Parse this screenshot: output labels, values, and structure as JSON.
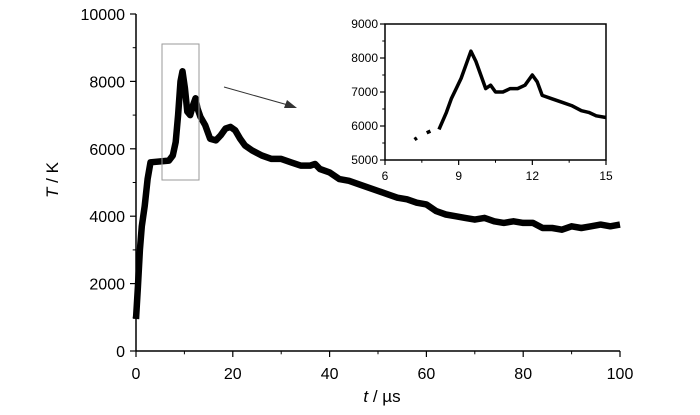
{
  "chart_data": [
    {
      "id": "main",
      "type": "line",
      "xlabel_var": "t",
      "xlabel_unit": " / µs",
      "ylabel_var": "T",
      "ylabel_unit": " / K",
      "xlim": [
        0,
        100
      ],
      "ylim": [
        0,
        10000
      ],
      "xticks": [
        "0",
        "20",
        "40",
        "60",
        "80",
        "100"
      ],
      "yticks": [
        "0",
        "2000",
        "4000",
        "6000",
        "8000",
        "10000"
      ],
      "grid": false,
      "series": [
        {
          "color": "#000000",
          "points": [
            [
              0.0,
              950
            ],
            [
              0.4,
              1900
            ],
            [
              0.8,
              3000
            ],
            [
              1.2,
              3700
            ],
            [
              1.8,
              4300
            ],
            [
              2.4,
              5100
            ],
            [
              3.0,
              5600
            ],
            [
              6.8,
              5650
            ],
            [
              7.6,
              5800
            ],
            [
              8.2,
              6200
            ],
            [
              8.7,
              7000
            ],
            [
              9.2,
              8000
            ],
            [
              9.6,
              8300
            ],
            [
              10.1,
              7800
            ],
            [
              10.6,
              7100
            ],
            [
              11.2,
              7000
            ],
            [
              11.8,
              7300
            ],
            [
              12.3,
              7500
            ],
            [
              12.7,
              7200
            ],
            [
              13.3,
              6950
            ],
            [
              14.3,
              6700
            ],
            [
              15.3,
              6300
            ],
            [
              16.5,
              6250
            ],
            [
              17.5,
              6400
            ],
            [
              18.5,
              6600
            ],
            [
              19.5,
              6650
            ],
            [
              20.5,
              6550
            ],
            [
              21.5,
              6300
            ],
            [
              22.5,
              6100
            ],
            [
              24,
              5950
            ],
            [
              26,
              5800
            ],
            [
              28,
              5700
            ],
            [
              30,
              5700
            ],
            [
              32,
              5600
            ],
            [
              34,
              5500
            ],
            [
              36,
              5500
            ],
            [
              37,
              5550
            ],
            [
              38,
              5400
            ],
            [
              40,
              5300
            ],
            [
              42,
              5100
            ],
            [
              44,
              5050
            ],
            [
              46,
              4950
            ],
            [
              48,
              4850
            ],
            [
              50,
              4750
            ],
            [
              52,
              4650
            ],
            [
              54,
              4550
            ],
            [
              56,
              4500
            ],
            [
              58,
              4400
            ],
            [
              60,
              4350
            ],
            [
              62,
              4150
            ],
            [
              64,
              4050
            ],
            [
              66,
              4000
            ],
            [
              68,
              3950
            ],
            [
              70,
              3900
            ],
            [
              72,
              3950
            ],
            [
              74,
              3850
            ],
            [
              76,
              3800
            ],
            [
              78,
              3850
            ],
            [
              80,
              3800
            ],
            [
              82,
              3800
            ],
            [
              84,
              3650
            ],
            [
              86,
              3650
            ],
            [
              88,
              3600
            ],
            [
              90,
              3700
            ],
            [
              92,
              3650
            ],
            [
              94,
              3700
            ],
            [
              96,
              3750
            ],
            [
              98,
              3700
            ],
            [
              100,
              3750
            ]
          ]
        }
      ]
    },
    {
      "id": "inset",
      "type": "line",
      "xlim": [
        6,
        15
      ],
      "ylim": [
        5000,
        9000
      ],
      "xticks": [
        "6",
        "9",
        "12",
        "15"
      ],
      "yticks": [
        "5000",
        "6000",
        "7000",
        "8000",
        "9000"
      ],
      "grid": false,
      "series": [
        {
          "color": "#000000",
          "segments": [
            [
              [
                7.2,
                5600
              ],
              [
                7.3,
                5650
              ]
            ],
            [
              [
                7.7,
                5800
              ],
              [
                7.85,
                5850
              ]
            ],
            [
              [
                8.2,
                5900
              ],
              [
                8.5,
                6400
              ],
              [
                8.7,
                6800
              ],
              [
                8.9,
                7100
              ],
              [
                9.1,
                7400
              ],
              [
                9.3,
                7800
              ],
              [
                9.5,
                8200
              ],
              [
                9.7,
                7900
              ],
              [
                9.9,
                7500
              ],
              [
                10.1,
                7100
              ],
              [
                10.3,
                7200
              ],
              [
                10.5,
                7000
              ],
              [
                10.8,
                7000
              ],
              [
                11.1,
                7100
              ],
              [
                11.4,
                7100
              ],
              [
                11.7,
                7200
              ],
              [
                12.0,
                7500
              ],
              [
                12.2,
                7300
              ],
              [
                12.4,
                6900
              ],
              [
                12.8,
                6800
              ],
              [
                13.2,
                6700
              ],
              [
                13.6,
                6600
              ],
              [
                14.0,
                6450
              ],
              [
                14.3,
                6400
              ],
              [
                14.6,
                6300
              ],
              [
                15.0,
                6250
              ]
            ]
          ]
        }
      ]
    }
  ]
}
